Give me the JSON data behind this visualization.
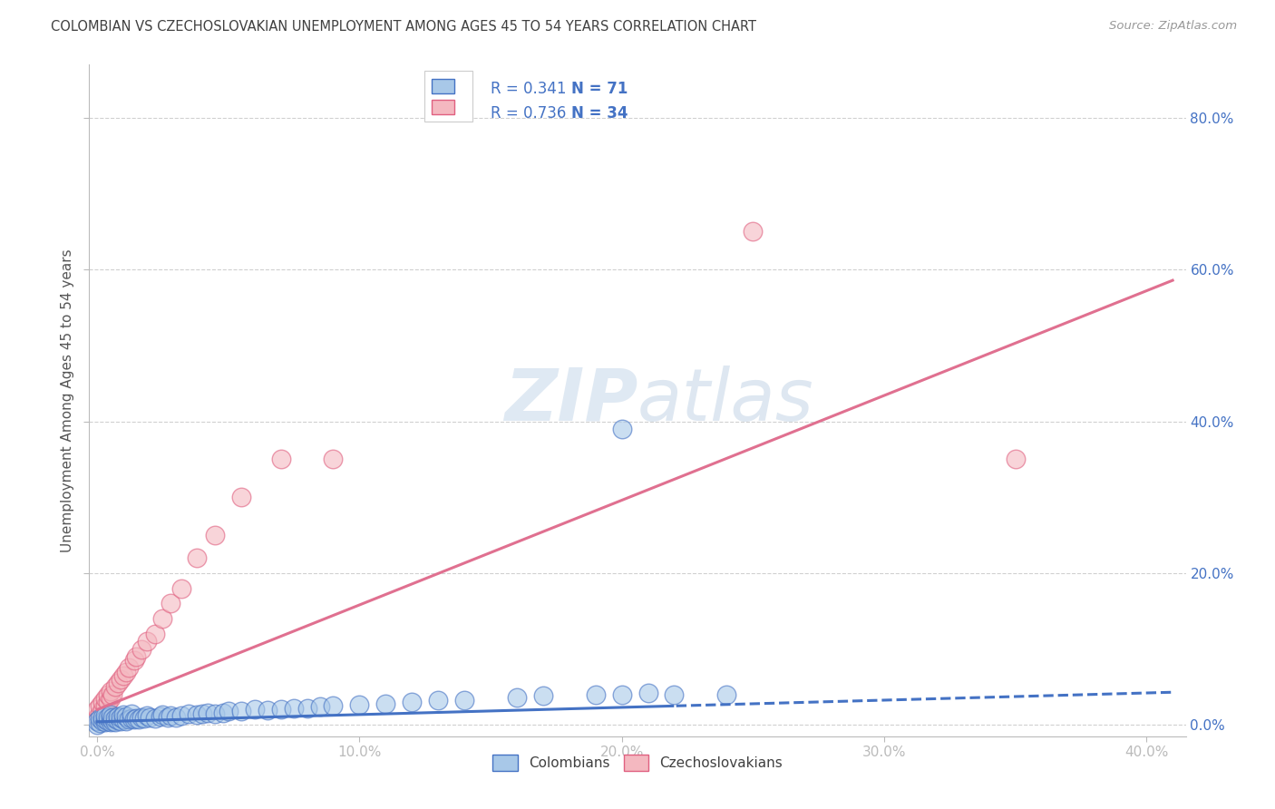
{
  "title": "COLOMBIAN VS CZECHOSLOVAKIAN UNEMPLOYMENT AMONG AGES 45 TO 54 YEARS CORRELATION CHART",
  "source": "Source: ZipAtlas.com",
  "ylabel_label": "Unemployment Among Ages 45 to 54 years",
  "xlim": [
    -0.003,
    0.415
  ],
  "ylim": [
    -0.015,
    0.87
  ],
  "x_tick_vals": [
    0.0,
    0.1,
    0.2,
    0.3,
    0.4
  ],
  "x_tick_labels": [
    "0.0%",
    "10.0%",
    "20.0%",
    "30.0%",
    "40.0%"
  ],
  "y_tick_vals": [
    0.0,
    0.2,
    0.4,
    0.6,
    0.8
  ],
  "y_tick_labels": [
    "0.0%",
    "20.0%",
    "40.0%",
    "60.0%",
    "80.0%"
  ],
  "colombian_R": "0.341",
  "colombian_N": "71",
  "czechoslovakian_R": "0.736",
  "czechoslovakian_N": "34",
  "col_color_fill": "#a8c8e8",
  "col_color_edge": "#4472c4",
  "czk_color_fill": "#f4b8c0",
  "czk_color_edge": "#e06080",
  "col_line_color": "#4472c4",
  "czk_line_color": "#e07090",
  "legend_label_col": "Colombians",
  "legend_label_czk": "Czechoslovakians",
  "text_color_blue": "#4472c4",
  "watermark_color": "#d8e4f0",
  "grid_color": "#d0d0d0",
  "background_color": "#ffffff",
  "title_color": "#404040",
  "col_trend_slope": 0.095,
  "col_trend_intercept": 0.004,
  "czk_trend_slope": 1.38,
  "czk_trend_intercept": 0.02,
  "col_scatter_x": [
    0.0,
    0.0,
    0.001,
    0.001,
    0.002,
    0.002,
    0.003,
    0.003,
    0.003,
    0.004,
    0.004,
    0.005,
    0.005,
    0.005,
    0.006,
    0.006,
    0.007,
    0.007,
    0.008,
    0.008,
    0.009,
    0.009,
    0.01,
    0.01,
    0.011,
    0.011,
    0.012,
    0.013,
    0.013,
    0.014,
    0.015,
    0.016,
    0.017,
    0.018,
    0.019,
    0.02,
    0.022,
    0.024,
    0.025,
    0.027,
    0.028,
    0.03,
    0.032,
    0.035,
    0.038,
    0.04,
    0.042,
    0.045,
    0.048,
    0.05,
    0.055,
    0.06,
    0.065,
    0.07,
    0.075,
    0.08,
    0.085,
    0.09,
    0.1,
    0.11,
    0.12,
    0.13,
    0.14,
    0.16,
    0.17,
    0.19,
    0.2,
    0.21,
    0.22,
    0.24,
    0.2
  ],
  "col_scatter_y": [
    0.0,
    0.005,
    0.003,
    0.008,
    0.005,
    0.01,
    0.004,
    0.007,
    0.012,
    0.005,
    0.01,
    0.004,
    0.008,
    0.013,
    0.005,
    0.01,
    0.004,
    0.009,
    0.006,
    0.011,
    0.005,
    0.01,
    0.007,
    0.013,
    0.005,
    0.011,
    0.007,
    0.009,
    0.014,
    0.007,
    0.008,
    0.007,
    0.01,
    0.008,
    0.012,
    0.01,
    0.009,
    0.011,
    0.013,
    0.01,
    0.012,
    0.01,
    0.012,
    0.014,
    0.013,
    0.015,
    0.016,
    0.015,
    0.016,
    0.018,
    0.018,
    0.02,
    0.019,
    0.021,
    0.022,
    0.022,
    0.024,
    0.025,
    0.027,
    0.028,
    0.03,
    0.032,
    0.033,
    0.036,
    0.038,
    0.04,
    0.04,
    0.042,
    0.04,
    0.04,
    0.39
  ],
  "czk_scatter_x": [
    0.0,
    0.0,
    0.001,
    0.001,
    0.002,
    0.002,
    0.003,
    0.003,
    0.004,
    0.004,
    0.005,
    0.005,
    0.006,
    0.007,
    0.008,
    0.009,
    0.01,
    0.011,
    0.012,
    0.014,
    0.015,
    0.017,
    0.019,
    0.022,
    0.025,
    0.028,
    0.032,
    0.038,
    0.045,
    0.055,
    0.07,
    0.09,
    0.25,
    0.35
  ],
  "czk_scatter_y": [
    0.01,
    0.02,
    0.015,
    0.025,
    0.02,
    0.03,
    0.025,
    0.035,
    0.03,
    0.04,
    0.035,
    0.045,
    0.04,
    0.05,
    0.055,
    0.06,
    0.065,
    0.07,
    0.075,
    0.085,
    0.09,
    0.1,
    0.11,
    0.12,
    0.14,
    0.16,
    0.18,
    0.22,
    0.25,
    0.3,
    0.35,
    0.35,
    0.65,
    0.35
  ]
}
